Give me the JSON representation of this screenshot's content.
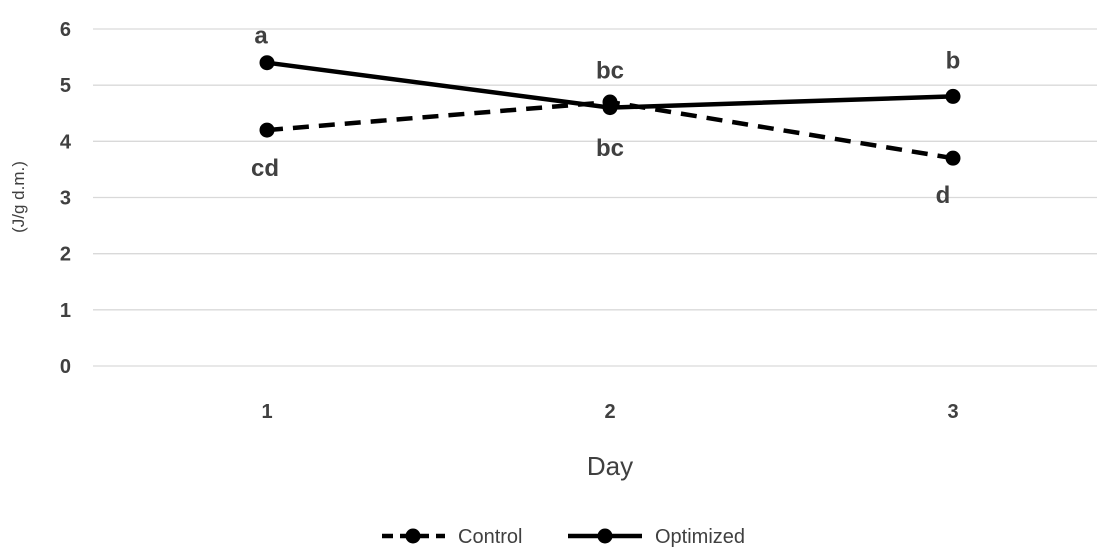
{
  "chart_data": {
    "type": "line",
    "title": "",
    "xlabel": "Day",
    "ylabel": "(J/g d.m.)",
    "categories": [
      "1",
      "2",
      "3"
    ],
    "ylim": [
      0,
      6
    ],
    "yticks": [
      "0",
      "1",
      "2",
      "3",
      "4",
      "5",
      "6"
    ],
    "grid": true,
    "legend_position": "bottom",
    "series": [
      {
        "name": "Control",
        "line_style": "dashed",
        "color": "#000000",
        "values": [
          4.2,
          4.7,
          3.7
        ],
        "labels": [
          "cd",
          "bc",
          "d"
        ]
      },
      {
        "name": "Optimized",
        "line_style": "solid",
        "color": "#000000",
        "values": [
          5.4,
          4.6,
          4.8
        ],
        "labels": [
          "a",
          "bc",
          "b"
        ]
      }
    ]
  }
}
